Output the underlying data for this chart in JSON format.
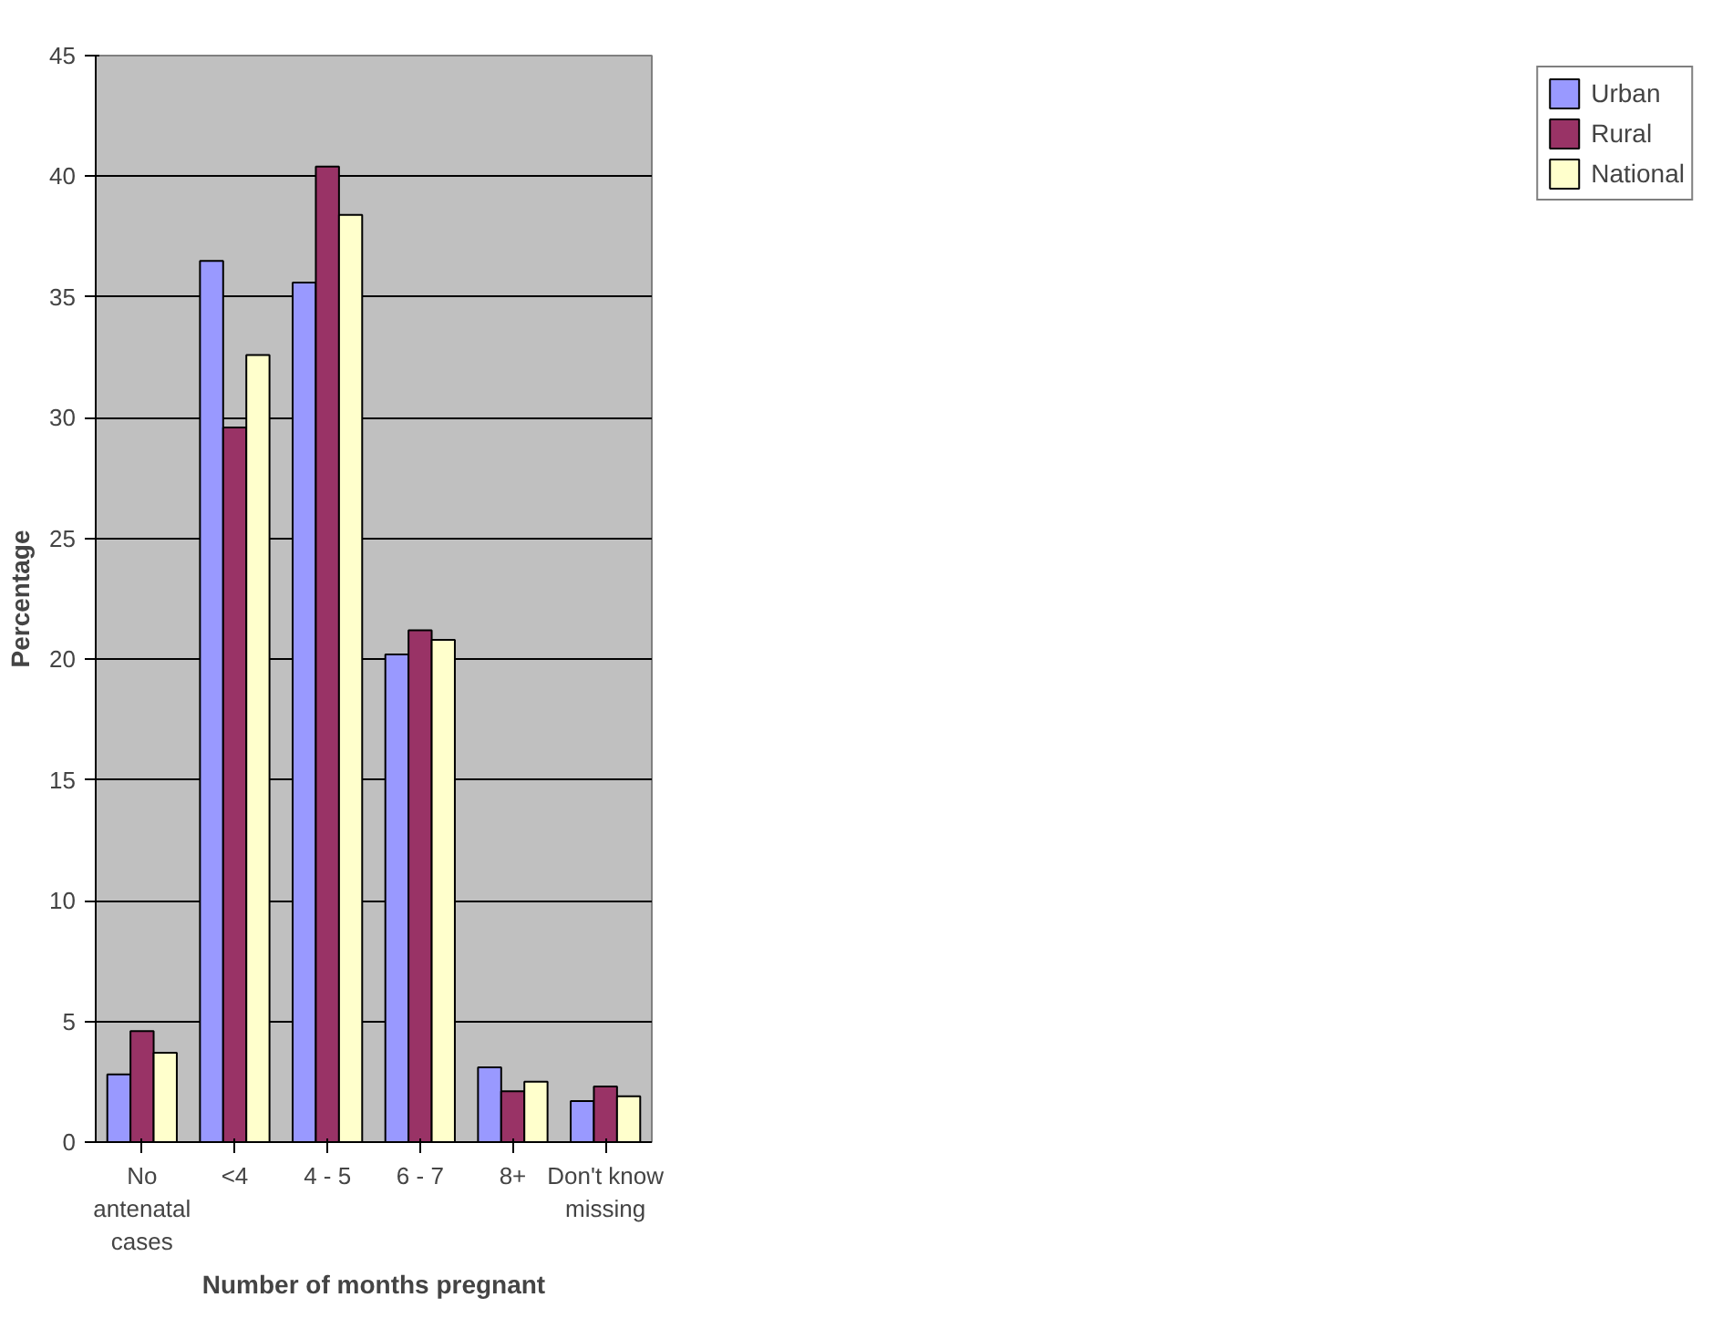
{
  "chart_data": {
    "type": "bar",
    "xlabel": "Number of months pregnant",
    "ylabel": "Percentage",
    "categories": [
      "No\nantenatal\ncases",
      "<4",
      "4 - 5",
      "6 - 7",
      "8+",
      "Don't know\nmissing"
    ],
    "series": [
      {
        "name": "Urban",
        "color": "#9999ff",
        "values": [
          2.8,
          36.5,
          35.6,
          20.2,
          3.1,
          1.7
        ]
      },
      {
        "name": "Rural",
        "color": "#993366",
        "values": [
          4.6,
          29.6,
          40.4,
          21.2,
          2.1,
          2.3
        ]
      },
      {
        "name": "National",
        "color": "#ffffcc",
        "values": [
          3.7,
          32.6,
          38.4,
          20.8,
          2.5,
          1.9
        ]
      }
    ],
    "ylim": [
      0,
      45
    ],
    "yticks": [
      0,
      5,
      10,
      15,
      20,
      25,
      30,
      35,
      40,
      45
    ],
    "grid": "y",
    "legend": "right"
  }
}
